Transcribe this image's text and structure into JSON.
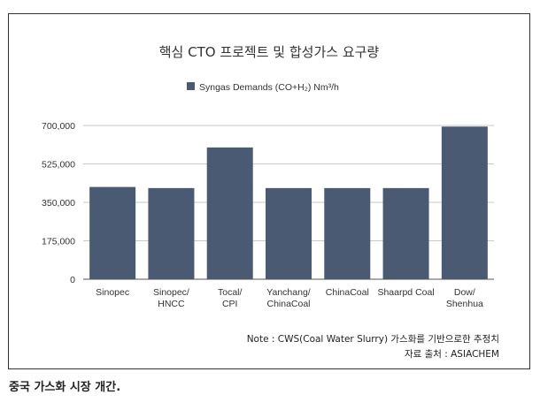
{
  "caption": "중국 가스화 시장 개간.",
  "chart_data": {
    "type": "bar",
    "title": "핵심 CTO 프로젝트 및 합성가스 요구량",
    "legend": {
      "label": "Syngas Demands (CO+H₂) Nm³/h",
      "position": "top-center"
    },
    "categories": [
      [
        "Sinopec"
      ],
      [
        "Sinopec/",
        "HNCC"
      ],
      [
        "Tocal/",
        "CPI"
      ],
      [
        "Yanchang/",
        "ChinaCoal"
      ],
      [
        "ChinaCoal"
      ],
      [
        "Shaarpd Coal"
      ],
      [
        "Dow/",
        "Shenhua"
      ]
    ],
    "series": [
      {
        "values": [
          420000,
          415000,
          600000,
          415000,
          415000,
          415000,
          695000
        ]
      }
    ],
    "ylim": [
      0,
      700000
    ],
    "yticks": [
      0,
      175000,
      350000,
      525000,
      700000
    ],
    "ytick_labels": [
      "0",
      "175,000",
      "350,000",
      "525,000",
      "700,000"
    ],
    "grid": true,
    "bar_color": "#4a5a72",
    "note": "Note : CWS(Coal Water Slurry) 가스화를 기반으로한 추정치",
    "source": "자료 출처 : ASIACHEM"
  }
}
